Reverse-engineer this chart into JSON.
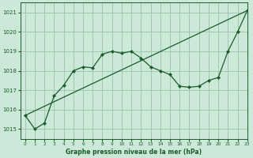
{
  "background_color": "#cce8d8",
  "grid_color": "#99c4aa",
  "line_color": "#1a5c28",
  "xlabel": "Graphe pression niveau de la mer (hPa)",
  "xlim": [
    -0.5,
    23
  ],
  "ylim": [
    1014.5,
    1021.5
  ],
  "yticks": [
    1015,
    1016,
    1017,
    1018,
    1019,
    1020,
    1021
  ],
  "xticks": [
    0,
    1,
    2,
    3,
    4,
    5,
    6,
    7,
    8,
    9,
    10,
    11,
    12,
    13,
    14,
    15,
    16,
    17,
    18,
    19,
    20,
    21,
    22,
    23
  ],
  "line1_x": [
    0,
    1,
    2,
    3,
    4,
    5,
    6,
    7,
    8,
    9,
    10,
    11,
    12,
    13,
    14,
    15,
    16,
    17,
    18,
    19,
    20,
    21,
    22,
    23
  ],
  "line1_y": [
    1015.7,
    1015.0,
    1015.3,
    1016.7,
    1017.25,
    1018.0,
    1018.2,
    1018.15,
    1018.85,
    1019.0,
    1018.9,
    1019.0,
    1018.65,
    1018.2,
    1018.0,
    1017.8,
    1017.2,
    1017.15,
    1017.2,
    1017.5,
    1017.65,
    1019.0,
    1020.0,
    1021.1
  ],
  "line2_x": [
    0,
    23
  ],
  "line2_y": [
    1015.7,
    1021.1
  ]
}
